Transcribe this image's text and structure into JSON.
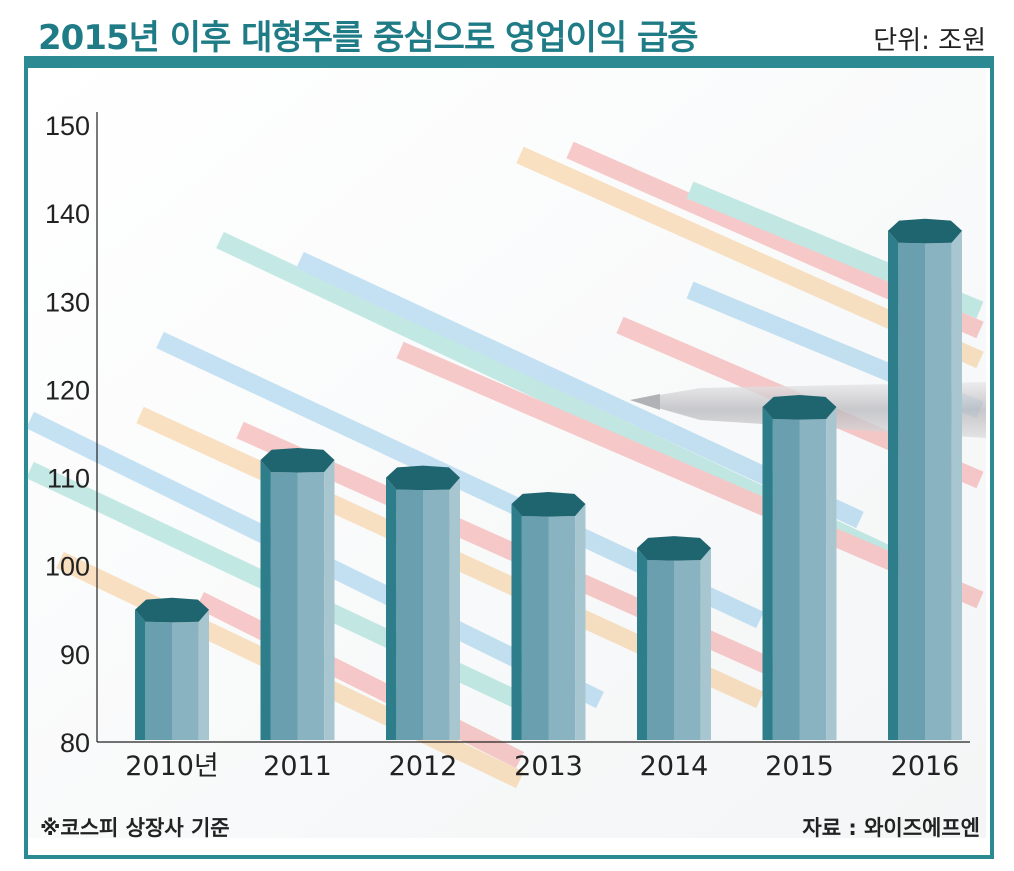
{
  "header": {
    "title": "2015년 이후 대형주를 중심으로 영업이익 급증",
    "unit": "단위: 조원"
  },
  "footer": {
    "note": "※코스피 상장사 기준",
    "source": "자료 : 와이즈에프엔"
  },
  "colors": {
    "accent": "#2c8a93",
    "title": "#1f7c86",
    "bar_light": "#8ab3c1",
    "bar_mid": "#6a9fb0",
    "bar_dark": "#2d7e8a",
    "bar_top": "#1f6570"
  },
  "chart_data": {
    "type": "bar",
    "categories": [
      "2010년",
      "2011",
      "2012",
      "2013",
      "2014",
      "2015",
      "2016"
    ],
    "values": [
      95,
      112,
      110,
      107,
      102,
      118,
      138
    ],
    "ylim": [
      80,
      150
    ],
    "yticks": [
      80,
      90,
      100,
      110,
      120,
      130,
      140,
      150
    ],
    "grid": false
  }
}
